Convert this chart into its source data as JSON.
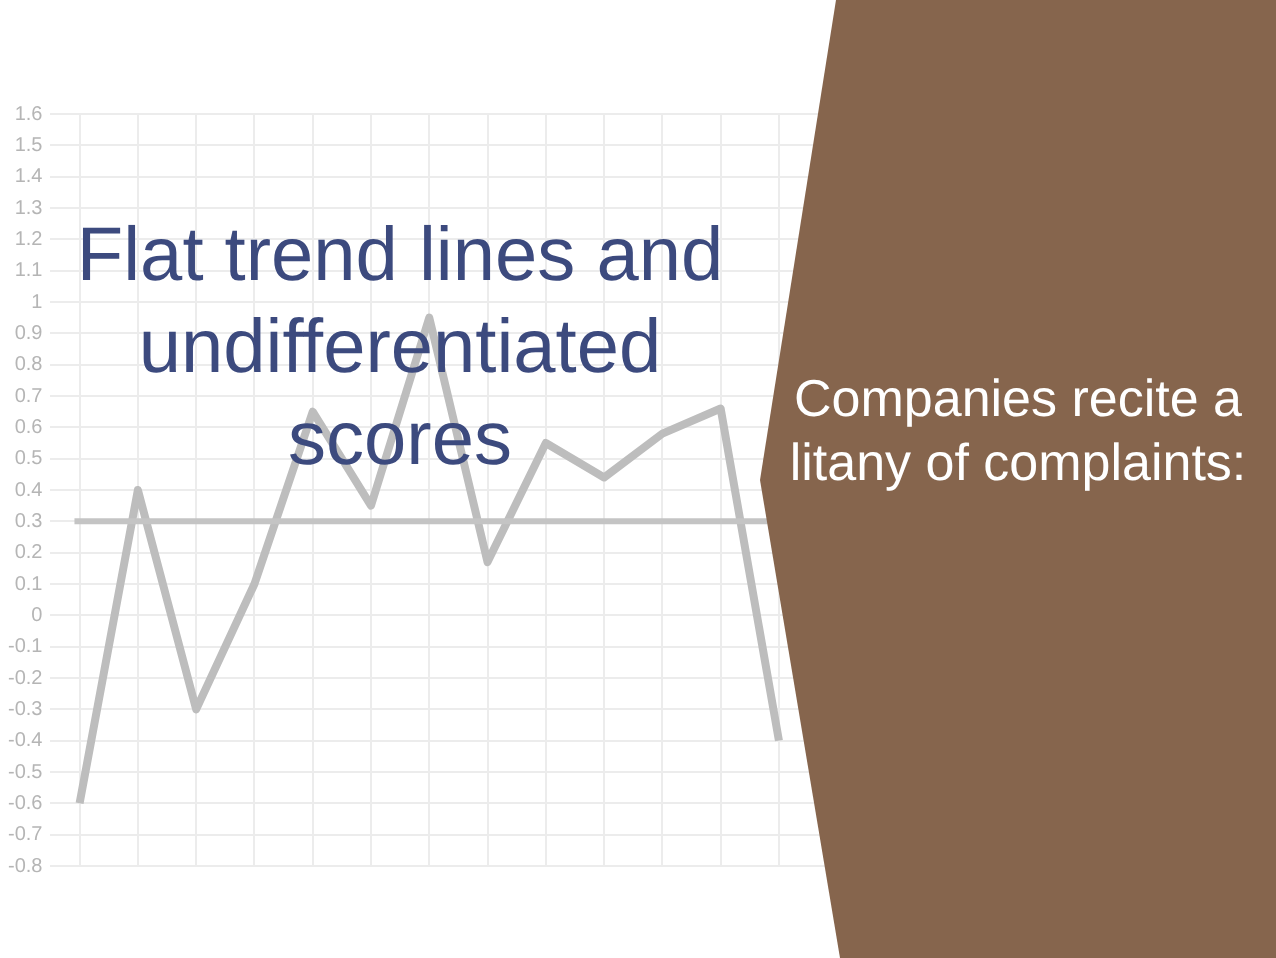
{
  "chart_data": {
    "type": "line",
    "title": "Flat trend lines and undifferentiated scores",
    "annotations": [
      "Companies recite a litany of complaints:"
    ],
    "categories": [
      null,
      null,
      null,
      null,
      null,
      null,
      null,
      null,
      null,
      null,
      null,
      null,
      null,
      null,
      null,
      null,
      null,
      null,
      null,
      null
    ],
    "series": [
      {
        "color": "#bdbdbd",
        "values": [
          -0.6,
          0.4,
          -0.3,
          0.1,
          0.65,
          0.35,
          0.95,
          0.17,
          0.55,
          0.44,
          0.58,
          0.66,
          -0.4,
          null,
          null,
          null,
          null,
          null,
          null,
          null
        ]
      }
    ],
    "ylim": [
      -0.8,
      1.6
    ],
    "yticks": [
      -0.8,
      -0.7,
      -0.6,
      -0.5,
      -0.4,
      -0.3,
      -0.2,
      -0.1,
      0,
      0.1,
      0.2,
      0.3,
      0.4,
      0.5,
      0.6,
      0.7,
      0.8,
      0.9,
      1,
      1.1,
      1.2,
      1.3,
      1.4,
      1.5,
      1.6
    ],
    "ref_lines": [
      {
        "axis": "y",
        "value": 0.3,
        "color": "#c4c4c4"
      }
    ],
    "grid": true,
    "legend": false,
    "tick_labels": "y",
    "marker": "none",
    "line_style": "solid"
  }
}
